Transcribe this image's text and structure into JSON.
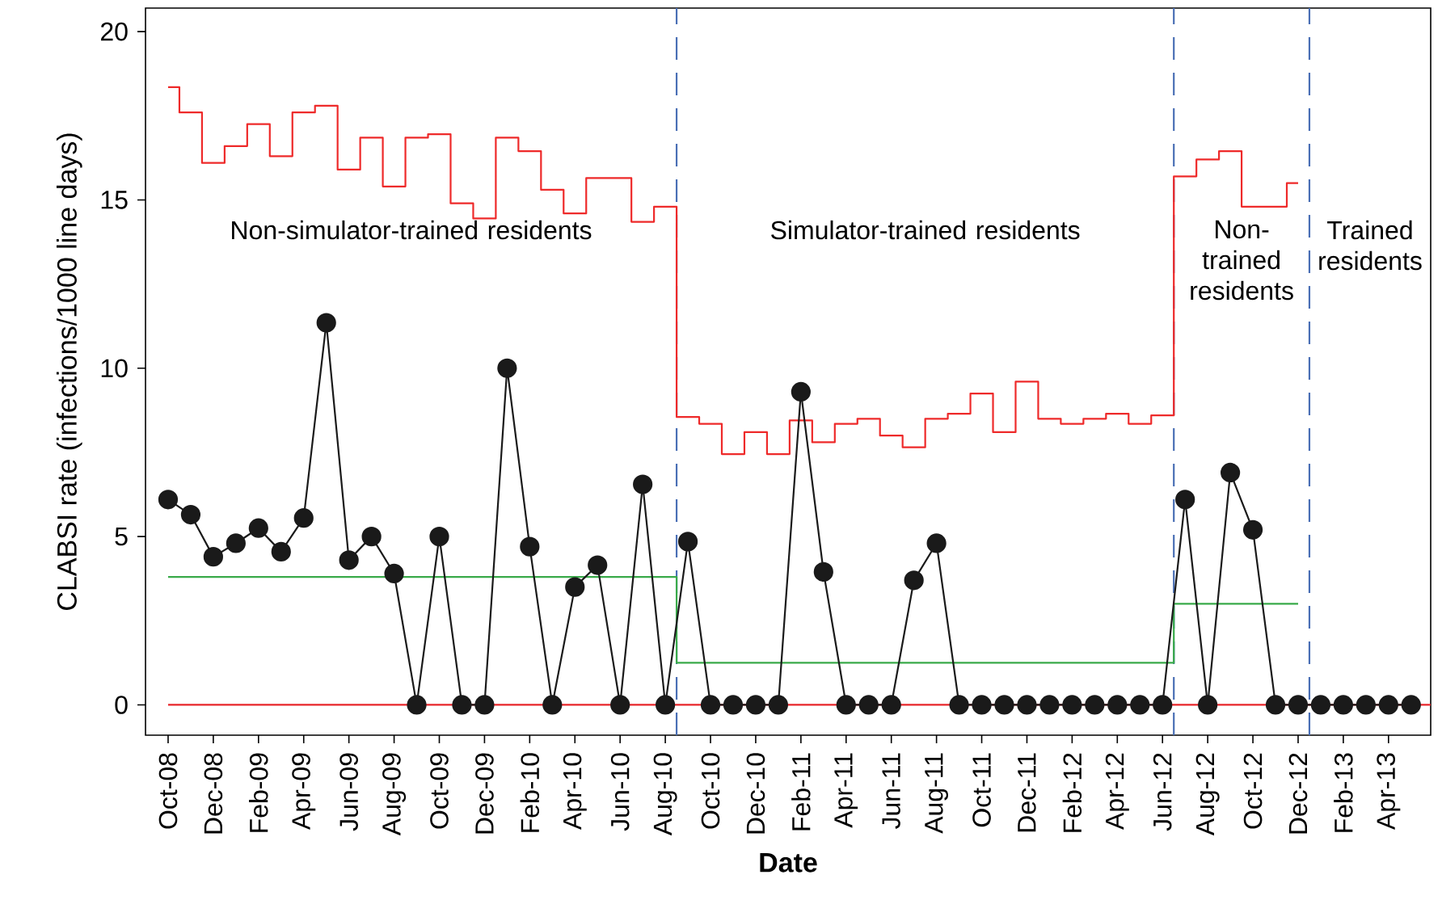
{
  "chart_data": {
    "type": "line",
    "xlabel": "Date",
    "ylabel": "CLABSI rate (infections/1000 line days)",
    "x": [
      "2008-10",
      "2008-11",
      "2008-12",
      "2009-01",
      "2009-02",
      "2009-03",
      "2009-04",
      "2009-05",
      "2009-06",
      "2009-07",
      "2009-08",
      "2009-09",
      "2009-10",
      "2009-11",
      "2009-12",
      "2010-01",
      "2010-02",
      "2010-03",
      "2010-04",
      "2010-05",
      "2010-06",
      "2010-07",
      "2010-08",
      "2010-09",
      "2010-10",
      "2010-11",
      "2010-12",
      "2011-01",
      "2011-02",
      "2011-03",
      "2011-04",
      "2011-05",
      "2011-06",
      "2011-07",
      "2011-08",
      "2011-09",
      "2011-10",
      "2011-11",
      "2011-12",
      "2012-01",
      "2012-02",
      "2012-03",
      "2012-04",
      "2012-05",
      "2012-06",
      "2012-07",
      "2012-08",
      "2012-09",
      "2012-10",
      "2012-11",
      "2012-12",
      "2013-01",
      "2013-02",
      "2013-03",
      "2013-04",
      "2013-05"
    ],
    "series": [
      {
        "type": "step",
        "color": "#ee2a2a",
        "marker": "none",
        "values": [
          18.35,
          17.6,
          16.1,
          16.6,
          17.25,
          16.3,
          17.6,
          17.8,
          15.9,
          16.85,
          15.4,
          16.85,
          16.95,
          14.9,
          14.45,
          16.85,
          16.45,
          15.3,
          14.6,
          15.65,
          15.65,
          14.35,
          14.8,
          8.55,
          8.35,
          7.45,
          8.1,
          7.45,
          8.45,
          7.8,
          8.35,
          8.5,
          8.0,
          7.65,
          8.5,
          8.65,
          9.25,
          8.1,
          9.6,
          8.5,
          8.35,
          8.5,
          8.65,
          8.35,
          8.6,
          15.7,
          16.2,
          16.45,
          14.8,
          14.8,
          15.5,
          null,
          null,
          null,
          null,
          null
        ]
      },
      {
        "type": "step",
        "color": "#3aaa4a",
        "marker": "none",
        "values": [
          3.8,
          3.8,
          3.8,
          3.8,
          3.8,
          3.8,
          3.8,
          3.8,
          3.8,
          3.8,
          3.8,
          3.8,
          3.8,
          3.8,
          3.8,
          3.8,
          3.8,
          3.8,
          3.8,
          3.8,
          3.8,
          3.8,
          3.8,
          1.25,
          1.25,
          1.25,
          1.25,
          1.25,
          1.25,
          1.25,
          1.25,
          1.25,
          1.25,
          1.25,
          1.25,
          1.25,
          1.25,
          1.25,
          1.25,
          1.25,
          1.25,
          1.25,
          1.25,
          1.25,
          1.25,
          3.0,
          3.0,
          3.0,
          3.0,
          3.0,
          3.0,
          null,
          null,
          null,
          null,
          null
        ]
      },
      {
        "color": "#1a1a1a",
        "marker": "circle",
        "values": [
          6.1,
          5.65,
          4.4,
          4.8,
          5.25,
          4.55,
          5.55,
          11.35,
          4.3,
          5.0,
          3.9,
          0,
          5.0,
          0,
          0,
          10.0,
          4.7,
          0,
          3.5,
          4.15,
          0,
          6.55,
          0,
          4.85,
          0,
          0,
          0,
          0,
          9.3,
          3.95,
          0,
          0,
          0,
          3.7,
          4.8,
          0,
          0,
          0,
          0,
          0,
          0,
          0,
          0,
          0,
          0,
          6.1,
          0,
          6.9,
          5.2,
          0,
          0,
          0,
          0,
          0,
          0,
          0
        ]
      }
    ],
    "ref_lines": [
      {
        "axis": "y",
        "value": 0,
        "color": "#e8262b",
        "line_style": "solid"
      },
      {
        "axis": "x",
        "value": "2010-08-16",
        "color": "#4a6fb5",
        "line_style": "dashed"
      },
      {
        "axis": "x",
        "value": "2012-06-16",
        "color": "#4a6fb5",
        "line_style": "dashed"
      },
      {
        "axis": "x",
        "value": "2012-12-16",
        "color": "#4a6fb5",
        "line_style": "dashed"
      }
    ],
    "annotations": [
      "Non-simulator-trained residents",
      "Simulator-trained residents",
      "Non-trained residents",
      "Trained residents"
    ],
    "xlim": [
      "2008-09",
      "2013-05-27"
    ],
    "ylim": [
      -0.9,
      20.7
    ],
    "xticks": [
      {
        "value": "2008-10",
        "label": "Oct-08"
      },
      {
        "value": "2008-12",
        "label": "Dec-08"
      },
      {
        "value": "2009-02",
        "label": "Feb-09"
      },
      {
        "value": "2009-04",
        "label": "Apr-09"
      },
      {
        "value": "2009-06",
        "label": "Jun-09"
      },
      {
        "value": "2009-08",
        "label": "Aug-09"
      },
      {
        "value": "2009-10",
        "label": "Oct-09"
      },
      {
        "value": "2009-12",
        "label": "Dec-09"
      },
      {
        "value": "2010-02",
        "label": "Feb-10"
      },
      {
        "value": "2010-04",
        "label": "Apr-10"
      },
      {
        "value": "2010-06",
        "label": "Jun-10"
      },
      {
        "value": "2010-08",
        "label": "Aug-10"
      },
      {
        "value": "2010-10",
        "label": "Oct-10"
      },
      {
        "value": "2010-12",
        "label": "Dec-10"
      },
      {
        "value": "2011-02",
        "label": "Feb-11"
      },
      {
        "value": "2011-04",
        "label": "Apr-11"
      },
      {
        "value": "2011-06",
        "label": "Jun-11"
      },
      {
        "value": "2011-08",
        "label": "Aug-11"
      },
      {
        "value": "2011-10",
        "label": "Oct-11"
      },
      {
        "value": "2011-12",
        "label": "Dec-11"
      },
      {
        "value": "2012-02",
        "label": "Feb-12"
      },
      {
        "value": "2012-04",
        "label": "Apr-12"
      },
      {
        "value": "2012-06",
        "label": "Jun-12"
      },
      {
        "value": "2012-08",
        "label": "Aug-12"
      },
      {
        "value": "2012-10",
        "label": "Oct-12"
      },
      {
        "value": "2012-12",
        "label": "Dec-12"
      },
      {
        "value": "2013-02",
        "label": "Feb-13"
      },
      {
        "value": "2013-04",
        "label": "Apr-13"
      }
    ],
    "yticks": [
      0,
      5,
      10,
      15,
      20
    ],
    "grid": false
  }
}
